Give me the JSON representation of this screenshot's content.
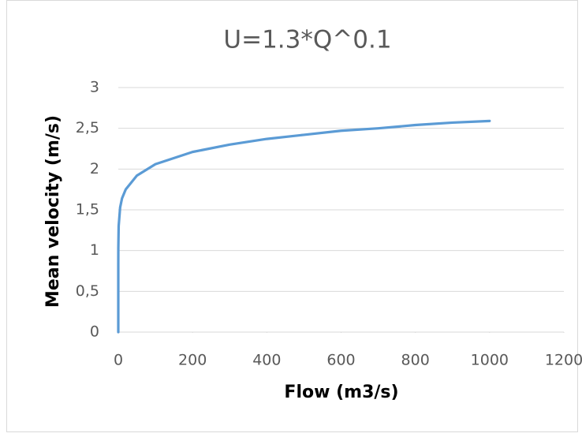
{
  "chart_data": {
    "type": "line",
    "title": "U=1.3*Q^0.1",
    "x_label": "Flow (m3/s)",
    "y_label": "Mean velocity (m/s)",
    "x": [
      0,
      0.001,
      0.01,
      0.1,
      1,
      5,
      10,
      20,
      50,
      100,
      200,
      300,
      400,
      500,
      600,
      700,
      800,
      900,
      1000
    ],
    "series": [
      {
        "name": "U",
        "color": "#5b9bd5",
        "values": [
          0,
          0.65,
          0.82,
          1.03,
          1.3,
          1.53,
          1.64,
          1.75,
          1.92,
          2.06,
          2.21,
          2.3,
          2.37,
          2.42,
          2.47,
          2.5,
          2.54,
          2.57,
          2.59
        ]
      }
    ],
    "xlim": [
      0,
      1200
    ],
    "xticks": [
      0,
      200,
      400,
      600,
      800,
      1000,
      1200
    ],
    "ylim": [
      0,
      3
    ],
    "yticks": [
      0,
      {
        "value": 0.5,
        "label": "0,5"
      },
      1,
      {
        "value": 1.5,
        "label": "1,5"
      },
      2,
      {
        "value": 2.5,
        "label": "2,5"
      },
      3
    ],
    "grid": true
  }
}
